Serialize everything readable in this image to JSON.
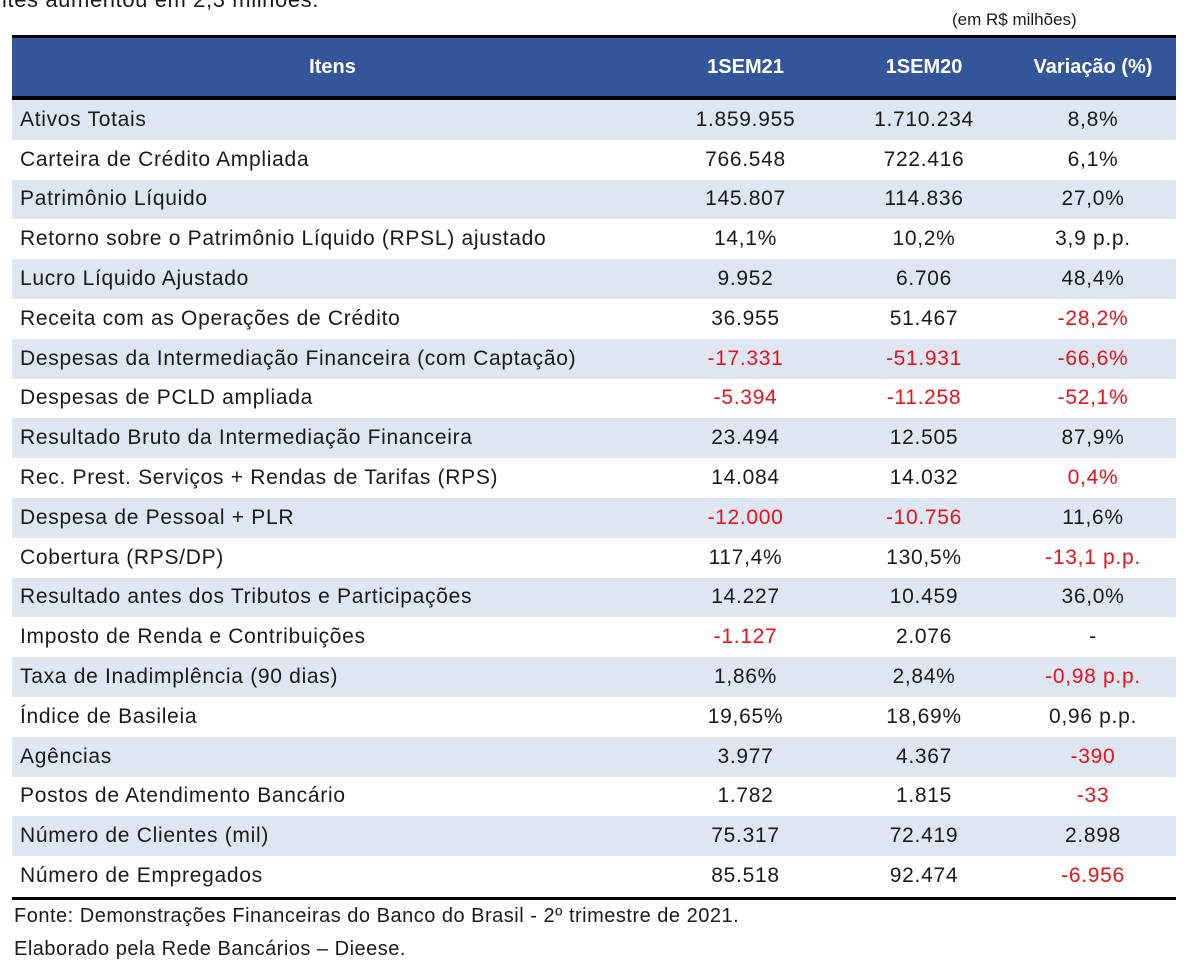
{
  "cut_text": "ites aumentou em 2,3 milhões.",
  "unit_note": "(em R$ milhões)",
  "header": {
    "col0": "Itens",
    "col1": "1SEM21",
    "col2": "1SEM20",
    "col3": "Variação (%)"
  },
  "rows": [
    {
      "item": "Ativos Totais",
      "v21": "1.859.955",
      "v20": "1.710.234",
      "var": "8,8%"
    },
    {
      "item": "Carteira de Crédito Ampliada",
      "v21": "766.548",
      "v20": "722.416",
      "var": "6,1%"
    },
    {
      "item": "Patrimônio Líquido",
      "v21": "145.807",
      "v20": "114.836",
      "var": "27,0%"
    },
    {
      "item": "Retorno sobre o Patrimônio Líquido (RPSL) ajustado",
      "v21": "14,1%",
      "v20": "10,2%",
      "var": "3,9 p.p."
    },
    {
      "item": "Lucro Líquido Ajustado",
      "v21": "9.952",
      "v20": "6.706",
      "var": "48,4%"
    },
    {
      "item": "Receita com as Operações de Crédito",
      "v21": "36.955",
      "v20": "51.467",
      "var": "-28,2%"
    },
    {
      "item": "Despesas da Intermediação Financeira (com Captação)",
      "v21": "-17.331",
      "v20": "-51.931",
      "var": "-66,6%"
    },
    {
      "item": "Despesas de PCLD ampliada",
      "v21": "-5.394",
      "v20": "-11.258",
      "var": "-52,1%"
    },
    {
      "item": "Resultado Bruto da Intermediação Financeira",
      "v21": "23.494",
      "v20": "12.505",
      "var": "87,9%"
    },
    {
      "item": "Rec. Prest. Serviços + Rendas de Tarifas (RPS)",
      "v21": "14.084",
      "v20": "14.032",
      "var": "0,4%"
    },
    {
      "item": "Despesa de Pessoal + PLR",
      "v21": "-12.000",
      "v20": "-10.756",
      "var": "11,6%"
    },
    {
      "item": "Cobertura (RPS/DP)",
      "v21": "117,4%",
      "v20": "130,5%",
      "var": "-13,1 p.p."
    },
    {
      "item": "Resultado antes dos Tributos e Participações",
      "v21": "14.227",
      "v20": "10.459",
      "var": "36,0%"
    },
    {
      "item": "Imposto de Renda e Contribuições",
      "v21": "-1.127",
      "v20": "2.076",
      "var": "-"
    },
    {
      "item": "Taxa de Inadimplência (90 dias)",
      "v21": "1,86%",
      "v20": "2,84%",
      "var": "-0,98 p.p."
    },
    {
      "item": "Índice de Basileia",
      "v21": "19,65%",
      "v20": "18,69%",
      "var": "0,96 p.p."
    },
    {
      "item": "Agências",
      "v21": "3.977",
      "v20": "4.367",
      "var": "-390"
    },
    {
      "item": "Postos de Atendimento Bancário",
      "v21": "1.782",
      "v20": "1.815",
      "var": "-33"
    },
    {
      "item": "Número de Clientes (mil)",
      "v21": "75.317",
      "v20": "72.419",
      "var": "2.898"
    },
    {
      "item": "Número de Empregados",
      "v21": "85.518",
      "v20": "92.474",
      "var": "-6.956"
    }
  ],
  "red_cells": [
    [
      5,
      "var"
    ],
    [
      6,
      "v21"
    ],
    [
      6,
      "v20"
    ],
    [
      6,
      "var"
    ],
    [
      7,
      "v21"
    ],
    [
      7,
      "v20"
    ],
    [
      7,
      "var"
    ],
    [
      9,
      "var"
    ],
    [
      10,
      "v21"
    ],
    [
      10,
      "v20"
    ],
    [
      11,
      "var"
    ],
    [
      13,
      "v21"
    ],
    [
      14,
      "var"
    ],
    [
      16,
      "var"
    ],
    [
      17,
      "var"
    ],
    [
      19,
      "var"
    ]
  ],
  "colors": {
    "header_bg": "#33569a",
    "alt_row_bg": "#dde6f1",
    "negative": "#e8121b"
  },
  "source_line1": "Fonte: Demonstrações Financeiras do Banco do Brasil - 2º trimestre de 2021.",
  "source_line2": "Elaborado pela Rede Bancários – Dieese."
}
